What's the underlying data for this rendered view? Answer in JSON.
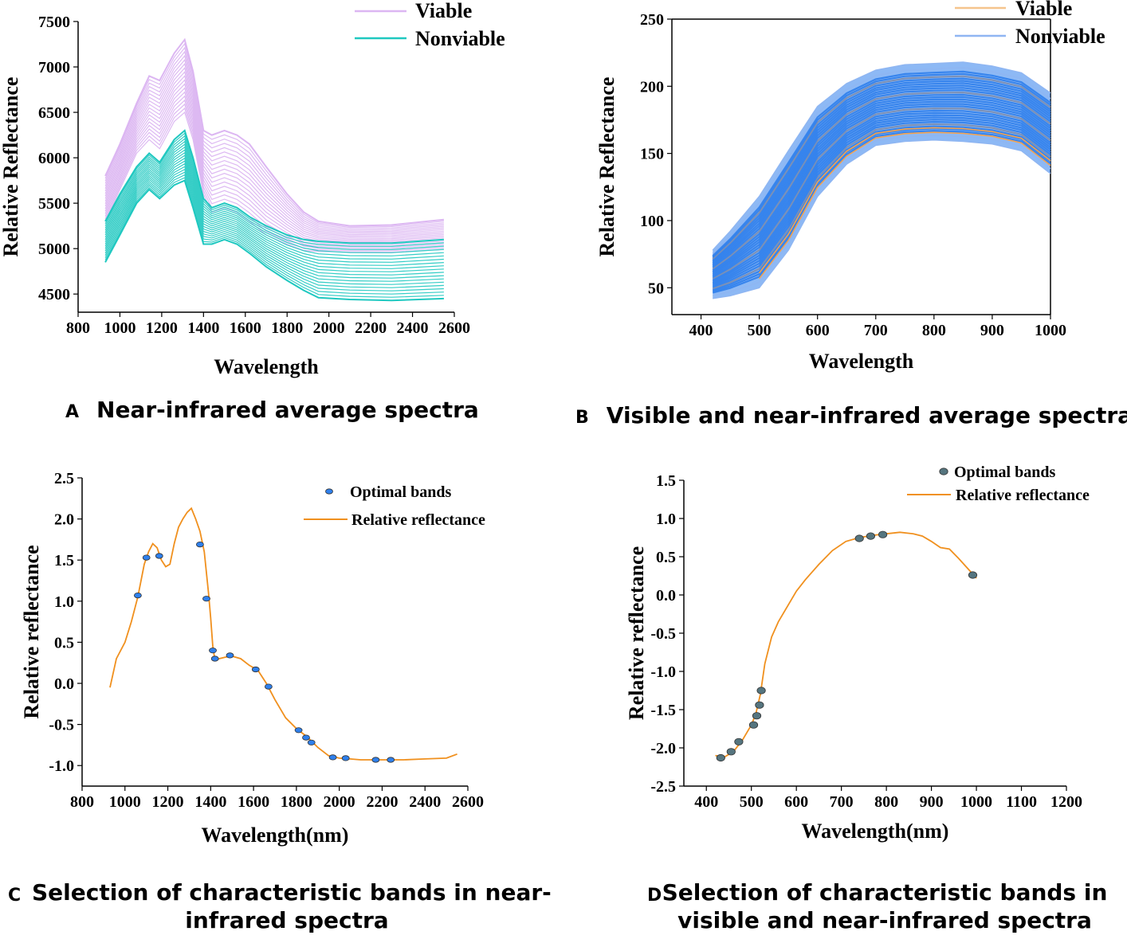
{
  "panels": {
    "A": {
      "letter": "A",
      "caption": "Near-infrared average spectra"
    },
    "B": {
      "letter": "B",
      "caption": "Visible and near-infrared average spectra"
    },
    "C": {
      "letter": "C",
      "caption_line1": "Selection of characteristic bands in near-",
      "caption_line2": "infrared spectra"
    },
    "D": {
      "letter": "D",
      "caption_line1": "Selection of characteristic bands in",
      "caption_line2": "visible and near-infrared spectra"
    }
  },
  "colors": {
    "viable_a": "#dcb6f2",
    "nonviable_a": "#1fc8c0",
    "viable_b": "#f4a24e",
    "nonviable_b": "#2f80ec",
    "line_cd": "#f0901e",
    "dot_c": "#2f80ec",
    "dot_d": "#55757f"
  },
  "chart_data": [
    {
      "id": "A",
      "type": "line",
      "title": "Near-infrared average spectra",
      "xlabel": "Wavelength",
      "ylabel": "Relative Reflectance",
      "xlim": [
        800,
        2600
      ],
      "ylim": [
        4300,
        7500
      ],
      "xticks": [
        800,
        1000,
        1200,
        1400,
        1600,
        1800,
        2000,
        2200,
        2400,
        2600
      ],
      "yticks": [
        4500,
        5000,
        5500,
        6000,
        6500,
        7000,
        7500
      ],
      "legend": [
        "Viable",
        "Nonviable"
      ],
      "series": [
        {
          "name": "Viable upper envelope",
          "x": [
            930,
            1000,
            1080,
            1140,
            1190,
            1260,
            1310,
            1350,
            1400,
            1440,
            1500,
            1560,
            1620,
            1700,
            1800,
            1880,
            1950,
            2100,
            2300,
            2550
          ],
          "y": [
            5800,
            6150,
            6600,
            6900,
            6850,
            7150,
            7300,
            6950,
            6300,
            6250,
            6300,
            6250,
            6150,
            5900,
            5600,
            5400,
            5300,
            5250,
            5260,
            5320
          ]
        },
        {
          "name": "Viable lower envelope",
          "x": [
            930,
            1000,
            1080,
            1140,
            1190,
            1260,
            1310,
            1350,
            1400,
            1440,
            1500,
            1560,
            1620,
            1700,
            1800,
            1880,
            1950,
            2100,
            2300,
            2550
          ],
          "y": [
            5300,
            5650,
            6050,
            6200,
            6100,
            6400,
            6500,
            6200,
            5600,
            5400,
            5450,
            5400,
            5300,
            5150,
            5050,
            4980,
            4970,
            4960,
            4960,
            4990
          ]
        },
        {
          "name": "Nonviable upper envelope",
          "x": [
            930,
            1000,
            1080,
            1140,
            1190,
            1260,
            1310,
            1350,
            1400,
            1440,
            1500,
            1560,
            1620,
            1700,
            1800,
            1880,
            1950,
            2100,
            2300,
            2550
          ],
          "y": [
            5300,
            5600,
            5900,
            6050,
            5950,
            6200,
            6300,
            6000,
            5550,
            5450,
            5500,
            5450,
            5350,
            5250,
            5150,
            5100,
            5080,
            5060,
            5060,
            5100
          ]
        },
        {
          "name": "Nonviable lower envelope",
          "x": [
            930,
            1000,
            1080,
            1140,
            1190,
            1260,
            1310,
            1350,
            1400,
            1440,
            1500,
            1560,
            1620,
            1700,
            1800,
            1880,
            1950,
            2100,
            2300,
            2550
          ],
          "y": [
            4850,
            5150,
            5500,
            5650,
            5550,
            5700,
            5750,
            5450,
            5050,
            5050,
            5100,
            5050,
            4950,
            4800,
            4650,
            4540,
            4460,
            4440,
            4430,
            4450
          ]
        }
      ]
    },
    {
      "id": "B",
      "type": "line",
      "title": "Visible and near-infrared average spectra",
      "xlabel": "Wavelength",
      "ylabel": "Relative Reflectance",
      "xlim": [
        350,
        1000
      ],
      "ylim": [
        30,
        250
      ],
      "xticks": [
        400,
        500,
        600,
        700,
        800,
        900,
        1000
      ],
      "yticks": [
        50,
        100,
        150,
        200,
        250
      ],
      "legend": [
        "Viable",
        "Nonviable"
      ],
      "series": [
        {
          "name": "Upper envelope",
          "x": [
            420,
            450,
            500,
            550,
            600,
            650,
            700,
            750,
            800,
            850,
            900,
            950,
            1000
          ],
          "y": [
            78,
            92,
            118,
            152,
            185,
            202,
            212,
            216,
            217,
            218,
            215,
            210,
            195
          ]
        },
        {
          "name": "Lower envelope",
          "x": [
            420,
            450,
            500,
            550,
            600,
            650,
            700,
            750,
            800,
            850,
            900,
            950,
            1000
          ],
          "y": [
            42,
            44,
            50,
            78,
            118,
            142,
            156,
            159,
            160,
            159,
            157,
            152,
            135
          ]
        }
      ]
    },
    {
      "id": "C",
      "type": "line",
      "title": "Selection of characteristic bands in near-infrared spectra",
      "xlabel": "Wavelength(nm)",
      "ylabel": "Relative reflectance",
      "xlim": [
        800,
        2600
      ],
      "ylim": [
        -1.25,
        2.5
      ],
      "xticks": [
        800,
        1000,
        1200,
        1400,
        1600,
        1800,
        2000,
        2200,
        2400,
        2600
      ],
      "yticks": [
        -1.0,
        -0.5,
        0.0,
        0.5,
        1.0,
        1.5,
        2.0,
        2.5
      ],
      "legend": [
        "Optimal bands",
        "Relative reflectance"
      ],
      "series": [
        {
          "name": "Relative reflectance",
          "x": [
            930,
            960,
            1000,
            1030,
            1060,
            1090,
            1110,
            1130,
            1150,
            1170,
            1190,
            1210,
            1230,
            1250,
            1270,
            1290,
            1310,
            1330,
            1350,
            1370,
            1390,
            1400,
            1410,
            1420,
            1440,
            1470,
            1500,
            1540,
            1580,
            1620,
            1660,
            1700,
            1750,
            1800,
            1850,
            1900,
            1950,
            2000,
            2050,
            2100,
            2200,
            2300,
            2400,
            2500,
            2550
          ],
          "y": [
            -0.05,
            0.3,
            0.5,
            0.75,
            1.05,
            1.45,
            1.6,
            1.7,
            1.65,
            1.5,
            1.42,
            1.45,
            1.7,
            1.9,
            2.0,
            2.08,
            2.13,
            2.0,
            1.85,
            1.6,
            1.1,
            0.8,
            0.45,
            0.28,
            0.3,
            0.32,
            0.33,
            0.3,
            0.22,
            0.16,
            0.0,
            -0.2,
            -0.42,
            -0.55,
            -0.65,
            -0.78,
            -0.88,
            -0.91,
            -0.92,
            -0.93,
            -0.93,
            -0.93,
            -0.92,
            -0.91,
            -0.86
          ]
        },
        {
          "name": "Optimal bands",
          "x": [
            1060,
            1100,
            1160,
            1350,
            1380,
            1410,
            1420,
            1490,
            1610,
            1670,
            1810,
            1845,
            1870,
            1970,
            2030,
            2170,
            2240
          ],
          "y": [
            1.07,
            1.53,
            1.55,
            1.69,
            1.03,
            0.4,
            0.3,
            0.34,
            0.17,
            -0.04,
            -0.57,
            -0.66,
            -0.72,
            -0.9,
            -0.91,
            -0.93,
            -0.93
          ]
        }
      ]
    },
    {
      "id": "D",
      "type": "line",
      "title": "Selection of characteristic bands in visible and near-infrared spectra",
      "xlabel": "Wavelength(nm)",
      "ylabel": "Relative reflectance",
      "xlim": [
        350,
        1200
      ],
      "ylim": [
        -2.5,
        1.5
      ],
      "xticks": [
        400,
        500,
        600,
        700,
        800,
        900,
        1000,
        1100,
        1200
      ],
      "yticks": [
        -2.5,
        -2.0,
        -1.5,
        -1.0,
        -0.5,
        0.0,
        0.5,
        1.0,
        1.5
      ],
      "legend": [
        "Optimal bands",
        "Relative reflectance"
      ],
      "series": [
        {
          "name": "Relative reflectance",
          "x": [
            420,
            440,
            460,
            480,
            500,
            510,
            520,
            530,
            545,
            560,
            580,
            600,
            620,
            650,
            680,
            710,
            740,
            770,
            800,
            830,
            860,
            880,
            900,
            920,
            940,
            960,
            980,
            1000
          ],
          "y": [
            -2.1,
            -2.12,
            -2.05,
            -1.9,
            -1.7,
            -1.55,
            -1.3,
            -0.9,
            -0.55,
            -0.35,
            -0.15,
            0.05,
            0.2,
            0.4,
            0.58,
            0.7,
            0.75,
            0.78,
            0.8,
            0.82,
            0.8,
            0.77,
            0.7,
            0.62,
            0.6,
            0.48,
            0.35,
            0.22
          ]
        },
        {
          "name": "Optimal bands",
          "x": [
            432,
            455,
            472,
            505,
            512,
            518,
            522,
            740,
            765,
            792,
            992
          ],
          "y": [
            -2.13,
            -2.05,
            -1.92,
            -1.7,
            -1.58,
            -1.44,
            -1.25,
            0.74,
            0.77,
            0.79,
            0.26
          ]
        }
      ]
    }
  ]
}
